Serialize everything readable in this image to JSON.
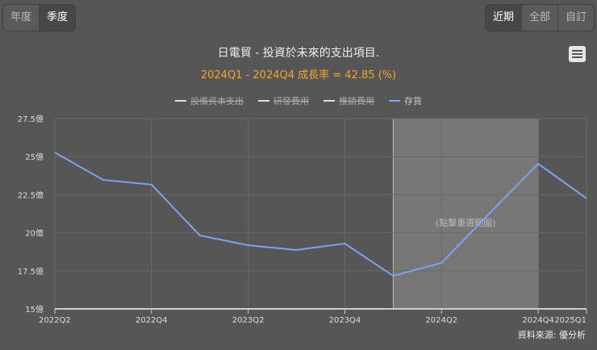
{
  "period_toggle": {
    "items": [
      "年度",
      "季度"
    ],
    "active": 1
  },
  "range_toggle": {
    "items": [
      "近期",
      "全部",
      "自訂"
    ],
    "active": 0
  },
  "title": "日電貿 - 投資於未來的支出項目.",
  "subtitle": "2024Q1 - 2024Q4 成長率 = 42.85 (%)",
  "menu_icon": "hamburger-icon",
  "source": "資料來源: 優分析",
  "chart_data": {
    "type": "line",
    "legend": [
      {
        "name": "設備資本支出",
        "visible": false,
        "color": "#dddddd"
      },
      {
        "name": "研發費用",
        "visible": false,
        "color": "#dddddd"
      },
      {
        "name": "推銷費用",
        "visible": false,
        "color": "#dddddd"
      },
      {
        "name": "存貨",
        "visible": true,
        "color": "#7ba4f0"
      }
    ],
    "categories": [
      "2022Q2",
      "2022Q3",
      "2022Q4",
      "2023Q1",
      "2023Q2",
      "2023Q3",
      "2023Q4",
      "2024Q1",
      "2024Q2",
      "2024Q3",
      "2024Q4",
      "2025Q1"
    ],
    "x_tick_labels": [
      "2022Q2",
      "2022Q4",
      "2023Q2",
      "2023Q4",
      "2024Q2",
      "2024Q4",
      "2025Q1"
    ],
    "series": [
      {
        "name": "存貨",
        "values": [
          25.27,
          23.47,
          23.16,
          19.82,
          19.18,
          18.87,
          19.29,
          17.17,
          18.02,
          21.3,
          24.53,
          22.26
        ]
      }
    ],
    "ylim": [
      15,
      27.5
    ],
    "y_ticks": [
      15,
      17.5,
      20,
      22.5,
      25,
      27.5
    ],
    "y_tick_labels": [
      "15億",
      "17.5億",
      "20億",
      "22.5億",
      "25億",
      "27.5億"
    ],
    "highlight_range": [
      "2024Q1",
      "2024Q4"
    ],
    "highlight_label": "(點擊重選範圍)",
    "grid": true
  }
}
